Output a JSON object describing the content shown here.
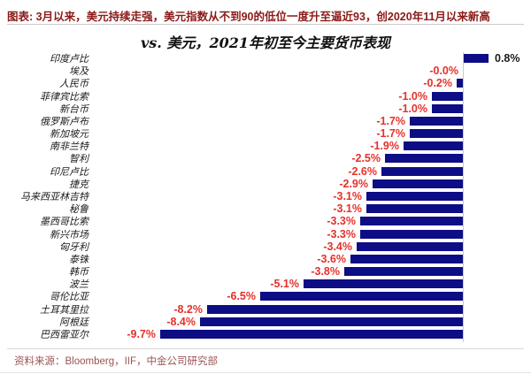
{
  "header": {
    "note": "图表: 3月以来，美元持续走强，美元指数从不到90的低位一度升至逼近93，创2020年11月以来新高",
    "note_color": "#8b1a17"
  },
  "chart_data": {
    "type": "bar",
    "orientation": "horizontal",
    "title": "vs. 美元，2021年初至今主要货币表现",
    "categories": [
      "印度卢比",
      "埃及",
      "人民币",
      "菲律宾比索",
      "新台币",
      "俄罗斯卢布",
      "新加坡元",
      "南非兰特",
      "智利",
      "印尼卢比",
      "捷克",
      "马来西亚林吉特",
      "秘鲁",
      "墨西哥比索",
      "新兴市场",
      "匈牙利",
      "泰铢",
      "韩币",
      "波兰",
      "哥伦比亚",
      "土耳其里拉",
      "阿根廷",
      "巴西雷亚尔"
    ],
    "values": [
      0.8,
      -0.0,
      -0.2,
      -1.0,
      -1.0,
      -1.7,
      -1.7,
      -1.9,
      -2.5,
      -2.6,
      -2.9,
      -3.1,
      -3.1,
      -3.3,
      -3.3,
      -3.4,
      -3.6,
      -3.8,
      -5.1,
      -6.5,
      -8.2,
      -8.4,
      -9.7
    ],
    "labels": [
      "0.8%",
      "-0.0%",
      "-0.2%",
      "-1.0%",
      "-1.0%",
      "-1.7%",
      "-1.7%",
      "-1.9%",
      "-2.5%",
      "-2.6%",
      "-2.9%",
      "-3.1%",
      "-3.1%",
      "-3.3%",
      "-3.3%",
      "-3.4%",
      "-3.6%",
      "-3.8%",
      "-5.1%",
      "-6.5%",
      "-8.2%",
      "-8.4%",
      "-9.7%"
    ],
    "unit": "%",
    "xlim": [
      -10.5,
      1.2
    ],
    "grid": false,
    "legend": false,
    "bar_color": "#0d0d86",
    "negative_label_color": "#e5312b",
    "positive_label_color": "#1a1a1a",
    "axis_line_color": "#c9c9c9"
  },
  "footer": {
    "source": "资料来源：Bloomberg，IIF，中金公司研究部",
    "source_color": "#9c5252"
  }
}
